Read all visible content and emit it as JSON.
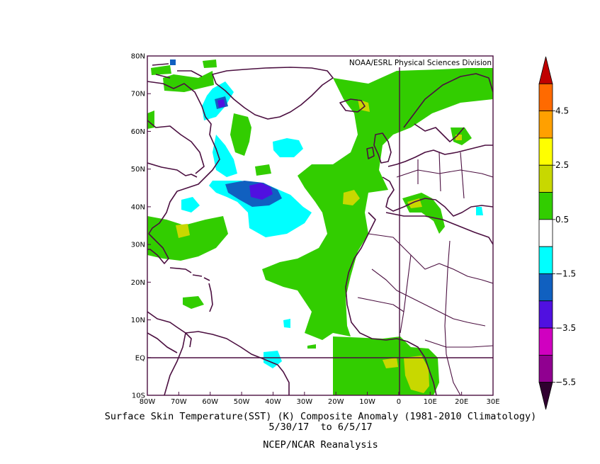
{
  "map": {
    "credit": "NOAA/ESRL Physical Sciences Division",
    "lon_ticks": [
      "80W",
      "70W",
      "60W",
      "50W",
      "40W",
      "30W",
      "20W",
      "10W",
      "0",
      "10E",
      "20E",
      "30E"
    ],
    "lat_ticks": [
      "80N",
      "70N",
      "60N",
      "50N",
      "40N",
      "30N",
      "20N",
      "10N",
      "EQ",
      "10S"
    ],
    "extent": {
      "lon_min": -80,
      "lon_max": 30,
      "lat_min": -10,
      "lat_max": 80
    },
    "land_color": "#4b0f40"
  },
  "colorbar": {
    "labels": [
      "4.5",
      "2.5",
      "0.5",
      "−1.5",
      "−3.5",
      "−5.5"
    ],
    "colors": [
      "#c00000",
      "#ff6a00",
      "#ffa000",
      "#ffff00",
      "#c8d800",
      "#32cd00",
      "#ffffff",
      "#00ffff",
      "#1060c0",
      "#5010e0",
      "#d000c0",
      "#900090",
      "#300030"
    ]
  },
  "caption": {
    "line1": "Surface Skin Temperature(SST) (K) Composite Anomaly (1981-2010 Climatology)",
    "line2": "5/30/17  to 6/5/17",
    "line3": "NCEP/NCAR Reanalysis"
  }
}
